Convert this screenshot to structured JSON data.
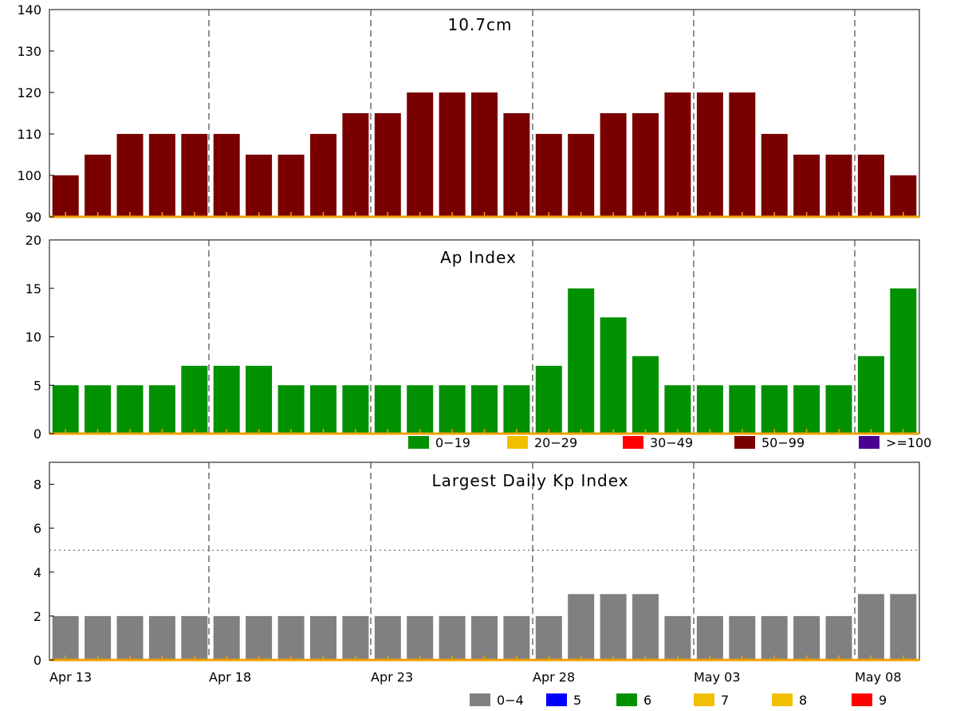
{
  "chart_data": [
    {
      "type": "bar",
      "title": "10.7cm",
      "x": [
        "Apr 13",
        "Apr 14",
        "Apr 15",
        "Apr 16",
        "Apr 17",
        "Apr 18",
        "Apr 19",
        "Apr 20",
        "Apr 21",
        "Apr 22",
        "Apr 23",
        "Apr 24",
        "Apr 25",
        "Apr 26",
        "Apr 27",
        "Apr 28",
        "Apr 29",
        "Apr 30",
        "May 01",
        "May 02",
        "May 03",
        "May 04",
        "May 05",
        "May 06",
        "May 07",
        "May 08",
        "May 09"
      ],
      "values": [
        100,
        105,
        110,
        110,
        110,
        110,
        105,
        105,
        110,
        115,
        115,
        120,
        120,
        120,
        115,
        110,
        110,
        115,
        115,
        120,
        120,
        120,
        110,
        105,
        105,
        105,
        100
      ],
      "ylim": [
        90,
        140
      ],
      "yticks": [
        90,
        100,
        110,
        120,
        130,
        140
      ],
      "bar_color": "#7a0000"
    },
    {
      "type": "bar",
      "title": "Ap Index",
      "x": [
        "Apr 13",
        "Apr 14",
        "Apr 15",
        "Apr 16",
        "Apr 17",
        "Apr 18",
        "Apr 19",
        "Apr 20",
        "Apr 21",
        "Apr 22",
        "Apr 23",
        "Apr 24",
        "Apr 25",
        "Apr 26",
        "Apr 27",
        "Apr 28",
        "Apr 29",
        "Apr 30",
        "May 01",
        "May 02",
        "May 03",
        "May 04",
        "May 05",
        "May 06",
        "May 07",
        "May 08",
        "May 09"
      ],
      "values": [
        5,
        5,
        5,
        5,
        7,
        7,
        7,
        5,
        5,
        5,
        5,
        5,
        5,
        5,
        5,
        7,
        15,
        12,
        8,
        5,
        5,
        5,
        5,
        5,
        5,
        8,
        15
      ],
      "ylim": [
        0,
        20
      ],
      "yticks": [
        0,
        5,
        10,
        15,
        20
      ],
      "bar_color": "#009000",
      "legend": [
        {
          "label": "0−19",
          "color": "#009000"
        },
        {
          "label": "20−29",
          "color": "#f0c000"
        },
        {
          "label": "30−49",
          "color": "#ff0000"
        },
        {
          "label": "50−99",
          "color": "#7a0000"
        },
        {
          "label": ">=100",
          "color": "#4b0090"
        }
      ]
    },
    {
      "type": "bar",
      "title": "Largest Daily Kp Index",
      "x": [
        "Apr 13",
        "Apr 14",
        "Apr 15",
        "Apr 16",
        "Apr 17",
        "Apr 18",
        "Apr 19",
        "Apr 20",
        "Apr 21",
        "Apr 22",
        "Apr 23",
        "Apr 24",
        "Apr 25",
        "Apr 26",
        "Apr 27",
        "Apr 28",
        "Apr 29",
        "Apr 30",
        "May 01",
        "May 02",
        "May 03",
        "May 04",
        "May 05",
        "May 06",
        "May 07",
        "May 08",
        "May 09"
      ],
      "values": [
        2,
        2,
        2,
        2,
        2,
        2,
        2,
        2,
        2,
        2,
        2,
        2,
        2,
        2,
        2,
        2,
        3,
        3,
        3,
        2,
        2,
        2,
        2,
        2,
        2,
        3,
        3
      ],
      "ylim": [
        0,
        9
      ],
      "yticks": [
        0,
        2,
        4,
        6,
        8
      ],
      "threshold": 5,
      "bar_color": "#808080",
      "xticklabels": [
        "Apr 13",
        "Apr 18",
        "Apr 23",
        "Apr 28",
        "May 03",
        "May 08"
      ],
      "legend": [
        {
          "label": "0−4",
          "color": "#808080"
        },
        {
          "label": "5",
          "color": "#0000ff"
        },
        {
          "label": "6",
          "color": "#009000"
        },
        {
          "label": "7",
          "color": "#f0c000"
        },
        {
          "label": "8",
          "color": "#f0c000"
        },
        {
          "label": "9",
          "color": "#ff0000"
        }
      ]
    }
  ]
}
